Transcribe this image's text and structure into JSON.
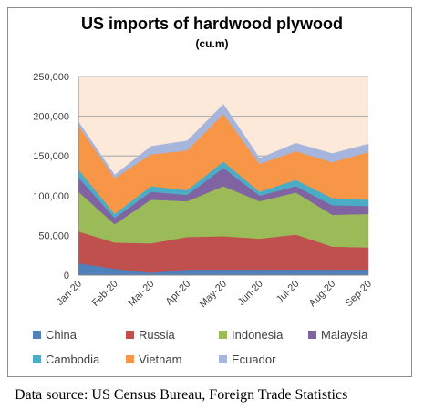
{
  "chart_data": {
    "type": "area",
    "stacked": true,
    "title": "US imports of hardwood plywood",
    "subtitle": "(cu.m)",
    "x": [
      "Jan-20",
      "Feb-20",
      "Mar-20",
      "Apr-20",
      "May-20",
      "Jun-20",
      "Jul-20",
      "Aug-20",
      "Sep-20"
    ],
    "ylim": [
      0,
      250000
    ],
    "yticks": [
      0,
      50000,
      100000,
      150000,
      200000,
      250000
    ],
    "ytick_labels": [
      "0",
      "50,000",
      "100,000",
      "150,000",
      "200,000",
      "250,000"
    ],
    "grid": true,
    "plot_background": "#fde9d9",
    "legend_position": "bottom",
    "series": [
      {
        "name": "China",
        "color": "#4f81bd",
        "values": [
          15000,
          8000,
          3000,
          7000,
          7000,
          7000,
          7000,
          7000,
          7000
        ]
      },
      {
        "name": "Russia",
        "color": "#c0504d",
        "values": [
          40000,
          33000,
          37000,
          41000,
          42000,
          39000,
          44000,
          29000,
          28000
        ]
      },
      {
        "name": "Indonesia",
        "color": "#9bbb59",
        "values": [
          50000,
          23000,
          55000,
          45000,
          63000,
          47000,
          53000,
          40000,
          42000
        ]
      },
      {
        "name": "Malaysia",
        "color": "#8064a2",
        "values": [
          18000,
          8000,
          10000,
          8000,
          23000,
          7000,
          8000,
          12000,
          10000
        ]
      },
      {
        "name": "Cambodia",
        "color": "#4bacc6",
        "values": [
          10000,
          5000,
          7000,
          6000,
          8000,
          5000,
          8000,
          9000,
          8000
        ]
      },
      {
        "name": "Vietnam",
        "color": "#f79646",
        "values": [
          55000,
          45000,
          40000,
          50000,
          60000,
          35000,
          36000,
          45000,
          60000
        ]
      },
      {
        "name": "Ecuador",
        "color": "#a5b5dc",
        "values": [
          5000,
          4000,
          10000,
          12000,
          12000,
          7000,
          10000,
          11000,
          10000
        ]
      }
    ]
  },
  "source_text": "Data source: US Census Bureau, Foreign Trade Statistics"
}
